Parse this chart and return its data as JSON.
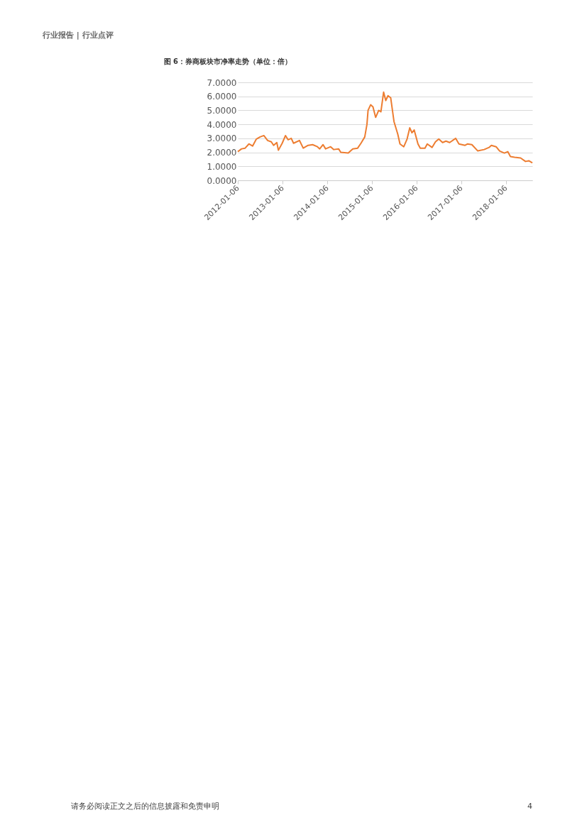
{
  "chart_data": {
    "type": "line",
    "title": "图 6：券商板块市净率走势（单位：倍）",
    "annotations": [
      "行业报告 | 行业点评",
      "请务必阅读正文之后的信息披露和免责申明",
      "4"
    ],
    "x": [
      "2012-01-06",
      "2012-02-06",
      "2012-03-06",
      "2012-04-06",
      "2012-05-06",
      "2012-06-06",
      "2012-07-06",
      "2012-08-06",
      "2012-09-06",
      "2012-10-06",
      "2012-10-25",
      "2012-11-20",
      "2012-12-03",
      "2013-01-03",
      "2013-01-30",
      "2013-02-20",
      "2013-03-18",
      "2013-04-06",
      "2013-05-24",
      "2013-06-24",
      "2013-08-03",
      "2013-09-09",
      "2013-10-18",
      "2013-11-06",
      "2013-12-03",
      "2013-12-24",
      "2014-02-03",
      "2014-03-01",
      "2014-04-09",
      "2014-04-27",
      "2014-06-27",
      "2014-08-03",
      "2014-09-12",
      "2014-10-09",
      "2014-11-09",
      "2014-11-27",
      "2014-12-06",
      "2014-12-27",
      "2015-01-15",
      "2015-02-06",
      "2015-03-03",
      "2015-03-21",
      "2015-04-12",
      "2015-04-30",
      "2015-05-18",
      "2015-06-09",
      "2015-07-06",
      "2015-08-06",
      "2015-08-24",
      "2015-09-24",
      "2015-10-21",
      "2015-11-12",
      "2015-11-30",
      "2015-12-18",
      "2016-01-18",
      "2016-02-06",
      "2016-03-15",
      "2016-04-03",
      "2016-05-12",
      "2016-06-09",
      "2016-07-06",
      "2016-08-06",
      "2016-09-03",
      "2016-10-03",
      "2016-11-21",
      "2016-12-18",
      "2017-02-06",
      "2017-02-27",
      "2017-04-03",
      "2017-05-21",
      "2017-07-12",
      "2017-08-21",
      "2017-09-09",
      "2017-10-18",
      "2017-11-15",
      "2017-12-24",
      "2018-01-21",
      "2018-02-12",
      "2018-03-18",
      "2018-05-06",
      "2018-06-15",
      "2018-07-12",
      "2018-08-10"
    ],
    "series": [
      {
        "color": "#ed7d31",
        "values": [
          2.05,
          2.25,
          2.3,
          2.6,
          2.45,
          2.95,
          3.1,
          3.2,
          2.85,
          2.75,
          2.5,
          2.7,
          2.15,
          2.65,
          3.2,
          2.9,
          3.0,
          2.65,
          2.85,
          2.3,
          2.5,
          2.55,
          2.4,
          2.25,
          2.55,
          2.25,
          2.4,
          2.2,
          2.25,
          2.0,
          1.95,
          2.25,
          2.3,
          2.65,
          3.1,
          4.0,
          5.0,
          5.4,
          5.25,
          4.5,
          5.0,
          4.9,
          6.3,
          5.7,
          6.05,
          5.9,
          4.2,
          3.3,
          2.6,
          2.4,
          2.95,
          3.75,
          3.4,
          3.6,
          2.6,
          2.3,
          2.3,
          2.6,
          2.35,
          2.75,
          2.95,
          2.7,
          2.8,
          2.7,
          3.0,
          2.6,
          2.5,
          2.6,
          2.55,
          2.1,
          2.2,
          2.35,
          2.5,
          2.4,
          2.1,
          1.95,
          2.05,
          1.7,
          1.65,
          1.6,
          1.35,
          1.4,
          1.25
        ]
      }
    ],
    "xlim": [
      "2012-01-06",
      "2018-08-10"
    ],
    "xticks": [
      "2012-01-06",
      "2013-01-06",
      "2014-01-06",
      "2015-01-06",
      "2016-01-06",
      "2017-01-06",
      "2018-01-06"
    ],
    "ylim": [
      0,
      7
    ],
    "yticks": [
      {
        "value": 0,
        "label": "0.0000"
      },
      {
        "value": 1,
        "label": "1.0000"
      },
      {
        "value": 2,
        "label": "2.0000"
      },
      {
        "value": 3,
        "label": "3.0000"
      },
      {
        "value": 4,
        "label": "4.0000"
      },
      {
        "value": 5,
        "label": "5.0000"
      },
      {
        "value": 6,
        "label": "6.0000"
      },
      {
        "value": 7,
        "label": "7.0000"
      }
    ],
    "grid": "y",
    "legend": false,
    "marker": "none",
    "line_style": "solid"
  }
}
